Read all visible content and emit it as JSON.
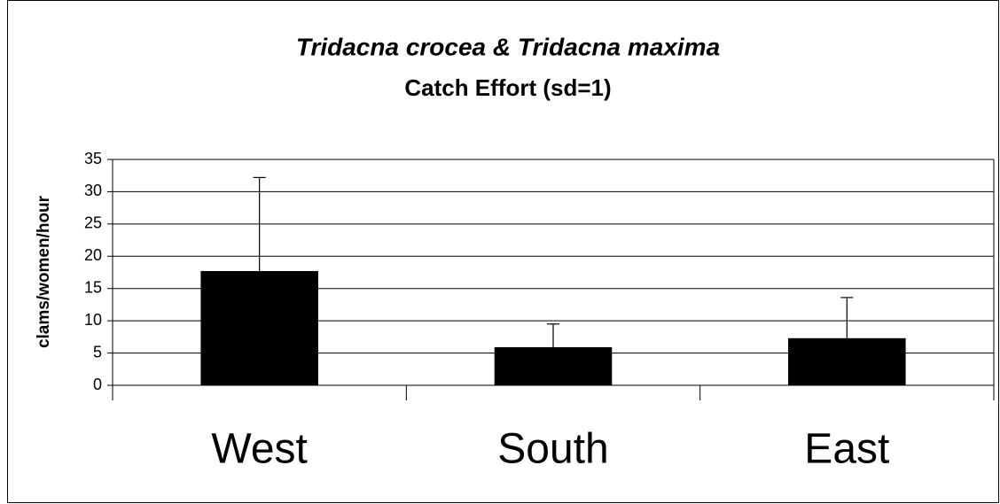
{
  "chart_data": {
    "type": "bar",
    "title": "Tridacna crocea & Tridacna maxima",
    "subtitle": "Catch Effort (sd=1)",
    "y_label": "clams/women/hour",
    "categories": [
      "West",
      "South",
      "East"
    ],
    "values": [
      17.7,
      5.9,
      7.3
    ],
    "errors": [
      14.5,
      3.6,
      6.3
    ],
    "color": "#000000",
    "ylim": [
      0,
      35
    ],
    "yticks": [
      0,
      5,
      10,
      15,
      20,
      25,
      30,
      35
    ],
    "grid": true
  }
}
